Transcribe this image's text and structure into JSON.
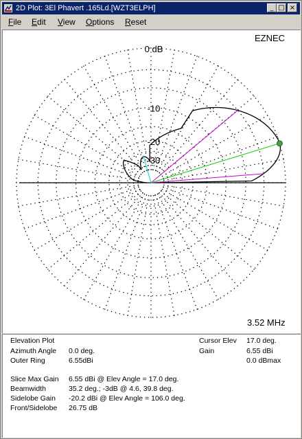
{
  "window": {
    "title": "2D Plot: 3El Phavert .165Ld.[WZT3ELPH]",
    "buttons": {
      "minimize": "_",
      "maximize": "□",
      "close": "×"
    }
  },
  "menu": [
    {
      "label": "File",
      "underline": "F",
      "rest": "ile"
    },
    {
      "label": "Edit",
      "underline": "E",
      "rest": "dit"
    },
    {
      "label": "View",
      "underline": "V",
      "rest": "iew"
    },
    {
      "label": "Options",
      "underline": "O",
      "rest": "ptions"
    },
    {
      "label": "Reset",
      "underline": "R",
      "rest": "eset"
    }
  ],
  "plot": {
    "brand": "EZNEC",
    "frequency": "3.52 MHz",
    "ring_labels": [
      "0 dB",
      "-10",
      "-20",
      "-30"
    ],
    "colors": {
      "pattern": "#000000",
      "max_gain_line": "#00cc00",
      "beamwidth_lines": "#cc00cc",
      "sidelobe_line": "#00cccc",
      "cursor_dot": "#4a9a4a"
    }
  },
  "chart_data": {
    "type": "polar",
    "plot_kind": "Elevation Plot",
    "outer_ring_dbi": 6.55,
    "ring_labels": [
      "0 dB",
      "-10",
      "-20",
      "-30"
    ],
    "max_gain": {
      "elev_angle_deg": 17.0,
      "gain_dbi": 6.55
    },
    "beamwidth": {
      "width_deg": 35.2,
      "minus3db_angles_deg": [
        4.6,
        39.8
      ]
    },
    "sidelobe": {
      "elev_angle_deg": 106.0,
      "gain_dbi": -20.2
    },
    "cursor": {
      "elev_deg": 17.0,
      "gain_dbi": 6.55,
      "gain_dbmax": 0.0
    },
    "front_to_sidelobe_db": 26.75
  },
  "info": {
    "plot_type": "Elevation Plot",
    "azimuth_label": "Azimuth Angle",
    "azimuth_value": "0.0 deg.",
    "outer_ring_label": "Outer Ring",
    "outer_ring_value": "6.55dBi",
    "cursor_elev_label": "Cursor Elev",
    "cursor_elev_value": "17.0 deg.",
    "gain_label": "Gain",
    "gain_value": "6.55 dBi",
    "gain_value2": "0.0 dBmax",
    "slice_max_label": "Slice Max Gain",
    "slice_max_value": "6.55 dBi @ Elev Angle = 17.0 deg.",
    "beamwidth_label": "Beamwidth",
    "beamwidth_value": "35.2 deg.; -3dB @ 4.6, 39.8 deg.",
    "sidelobe_label": "Sidelobe Gain",
    "sidelobe_value": "-20.2 dBi @ Elev Angle = 106.0 deg.",
    "fs_label": "Front/Sidelobe",
    "fs_value": "26.75 dB"
  }
}
